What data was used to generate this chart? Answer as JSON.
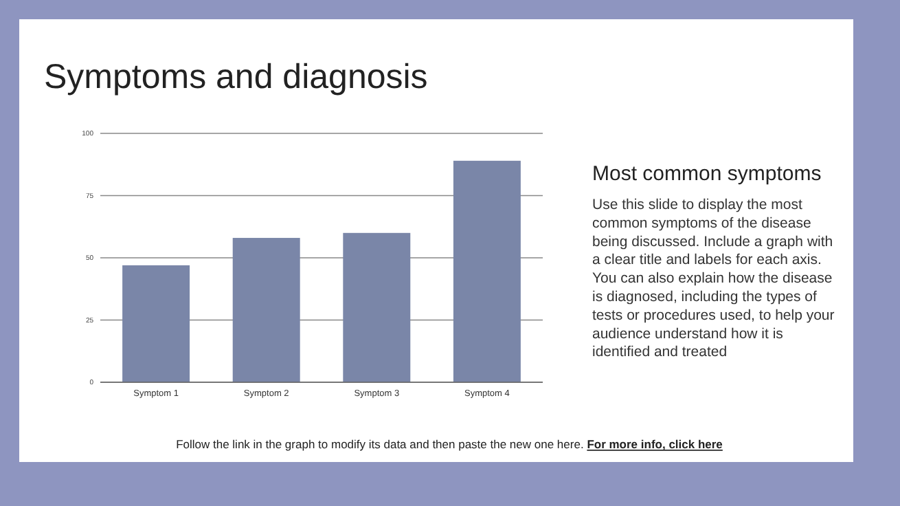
{
  "chart_data": {
    "type": "bar",
    "title": "Symptoms and diagnosis",
    "subtitle": "Most common symptoms",
    "categories": [
      "Symptom 1",
      "Symptom 2",
      "Symptom 3",
      "Symptom 4"
    ],
    "values": [
      47,
      58,
      60,
      89
    ],
    "color": "#7a86a8",
    "ylim": [
      0,
      100
    ],
    "yticks": [
      0,
      25,
      50,
      75,
      100
    ],
    "grid": "y",
    "annotations": [
      "Use this slide to display the most common symptoms of the disease being discussed. Include a graph with a clear title and labels for each axis. You can also explain how the disease is diagnosed, including the types of tests or procedures used, to help your audience understand how it is identified and treated",
      "Follow the link in the graph to modify its data and then paste the new one here.",
      "For more info, click here"
    ]
  }
}
